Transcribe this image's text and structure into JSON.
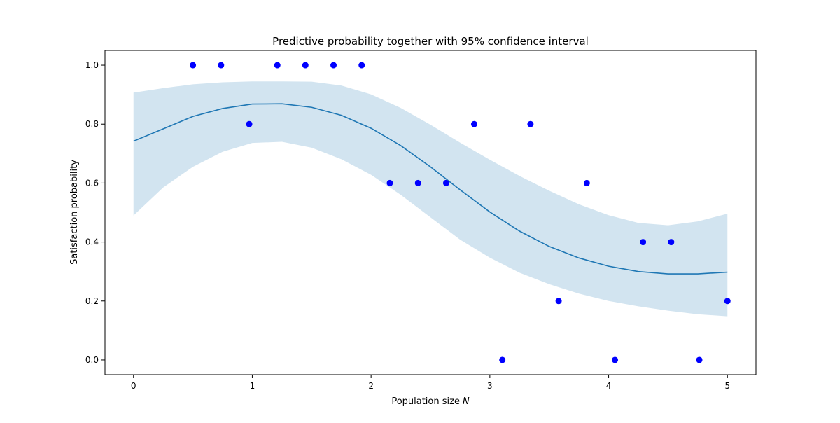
{
  "chart_data": {
    "type": "scatter",
    "title": "Predictive probability together with 95% confidence interval",
    "xlabel": "Population size",
    "xlabel_symbol": "N",
    "ylabel": "Satisfaction probability",
    "xlim": [
      -0.24,
      5.24
    ],
    "ylim": [
      -0.05,
      1.05
    ],
    "x_ticks": [
      0,
      1,
      2,
      3,
      4,
      5
    ],
    "y_ticks": [
      0.0,
      0.2,
      0.4,
      0.6,
      0.8,
      1.0
    ],
    "x_tick_labels": [
      "0",
      "1",
      "2",
      "3",
      "4",
      "5"
    ],
    "y_tick_labels": [
      "0.0",
      "0.2",
      "0.4",
      "0.6",
      "0.8",
      "1.0"
    ],
    "grid": false,
    "colors": {
      "points": "#0000ff",
      "mean_line": "#1f77b4",
      "band": "#1f77b4",
      "band_opacity": 0.2,
      "axes": "#000000"
    },
    "series": [
      {
        "kind": "scatter",
        "x": [
          0.5,
          0.737,
          0.974,
          1.211,
          1.447,
          1.684,
          1.921,
          2.158,
          2.395,
          2.632,
          2.868,
          3.105,
          3.342,
          3.579,
          3.816,
          4.053,
          4.289,
          4.526,
          4.763,
          5.0
        ],
        "y": [
          1.0,
          1.0,
          0.8,
          1.0,
          1.0,
          1.0,
          1.0,
          0.6,
          0.6,
          0.6,
          0.8,
          0.0,
          0.8,
          0.2,
          0.6,
          0.0,
          0.4,
          0.4,
          0.0,
          0.2
        ]
      },
      {
        "kind": "line",
        "x": [
          0.0,
          0.25,
          0.5,
          0.75,
          1.0,
          1.25,
          1.5,
          1.75,
          2.0,
          2.25,
          2.5,
          2.75,
          3.0,
          3.25,
          3.5,
          3.75,
          4.0,
          4.25,
          4.5,
          4.75,
          5.0
        ],
        "y": [
          0.742,
          0.784,
          0.826,
          0.853,
          0.868,
          0.869,
          0.857,
          0.83,
          0.786,
          0.727,
          0.655,
          0.577,
          0.502,
          0.437,
          0.385,
          0.346,
          0.318,
          0.3,
          0.292,
          0.292,
          0.298
        ]
      },
      {
        "kind": "band",
        "x": [
          0.0,
          0.25,
          0.5,
          0.75,
          1.0,
          1.25,
          1.5,
          1.75,
          2.0,
          2.25,
          2.5,
          2.75,
          3.0,
          3.25,
          3.5,
          3.75,
          4.0,
          4.25,
          4.5,
          4.75,
          5.0
        ],
        "lower": [
          0.49,
          0.585,
          0.655,
          0.706,
          0.736,
          0.74,
          0.72,
          0.681,
          0.628,
          0.56,
          0.484,
          0.408,
          0.347,
          0.296,
          0.257,
          0.225,
          0.2,
          0.182,
          0.167,
          0.155,
          0.148
        ],
        "upper": [
          0.907,
          0.922,
          0.935,
          0.942,
          0.945,
          0.945,
          0.944,
          0.931,
          0.901,
          0.855,
          0.798,
          0.737,
          0.679,
          0.624,
          0.574,
          0.528,
          0.491,
          0.465,
          0.457,
          0.47,
          0.496
        ]
      }
    ]
  }
}
